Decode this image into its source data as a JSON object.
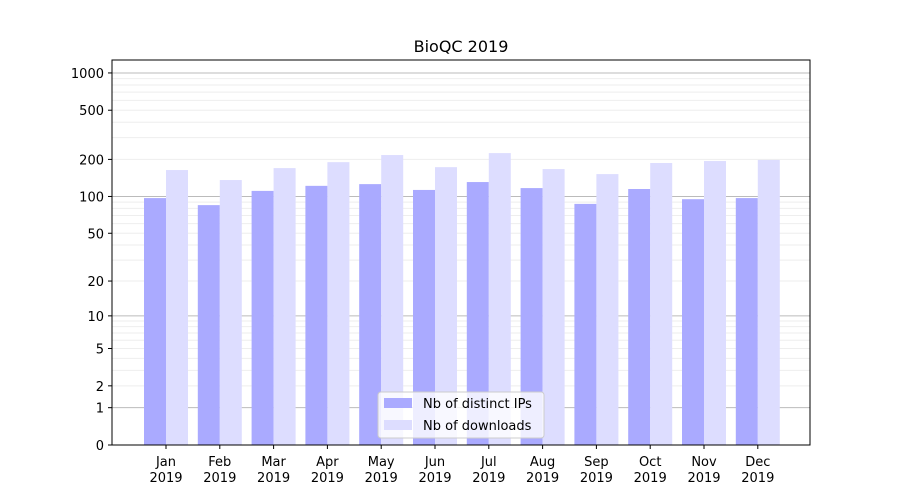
{
  "chart_data": {
    "type": "bar",
    "title": "BioQC 2019",
    "xlabel": "",
    "ylabel": "",
    "yscale": "log10(y+1)",
    "ylim": [
      0,
      1300
    ],
    "yticks": [
      0,
      1,
      2,
      5,
      10,
      20,
      50,
      100,
      200,
      500,
      1000
    ],
    "ytick_labels": [
      "0",
      "1",
      "2",
      "5",
      "10",
      "20",
      "50",
      "100",
      "200",
      "500",
      "1000"
    ],
    "categories": [
      "Jan\n2019",
      "Feb\n2019",
      "Mar\n2019",
      "Apr\n2019",
      "May\n2019",
      "Jun\n2019",
      "Jul\n2019",
      "Aug\n2019",
      "Sep\n2019",
      "Oct\n2019",
      "Nov\n2019",
      "Dec\n2019"
    ],
    "category_months": [
      "Jan",
      "Feb",
      "Mar",
      "Apr",
      "May",
      "Jun",
      "Jul",
      "Aug",
      "Sep",
      "Oct",
      "Nov",
      "Dec"
    ],
    "category_year": "2019",
    "series": [
      {
        "name": "Nb of distinct IPs",
        "color": "#aaaaff",
        "values": [
          97,
          85,
          111,
          122,
          126,
          113,
          131,
          117,
          87,
          115,
          95,
          97
        ]
      },
      {
        "name": "Nb of downloads",
        "color": "#ddddff",
        "values": [
          164,
          136,
          170,
          190,
          217,
          173,
          225,
          167,
          152,
          187,
          194,
          198
        ]
      }
    ],
    "grid": true,
    "legend_position": "lower-center"
  }
}
